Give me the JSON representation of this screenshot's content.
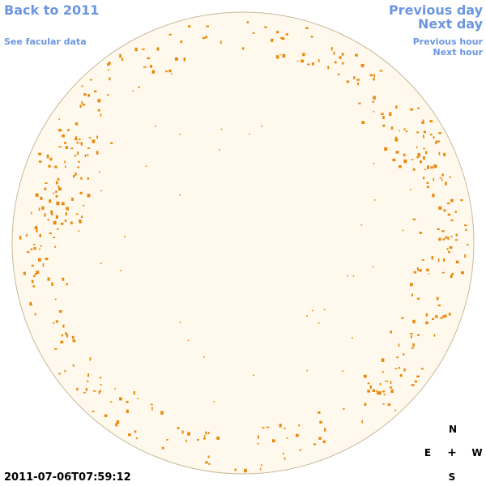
{
  "colors": {
    "link": "#6c96e0",
    "disk_fill": "#fef9ec",
    "disk_edge": "#c8b89a",
    "spot": "#e8890c",
    "text": "#000000"
  },
  "nav": {
    "back": "Back to 2011",
    "facular": "See facular data",
    "prev_day": "Previous day",
    "next_day": "Next day",
    "prev_hour": "Previous hour",
    "next_hour": "Next hour"
  },
  "timestamp": "2011-07-06T07:59:12",
  "compass": {
    "north": "N",
    "south": "S",
    "east": "E",
    "west": "W",
    "center": "+"
  }
}
